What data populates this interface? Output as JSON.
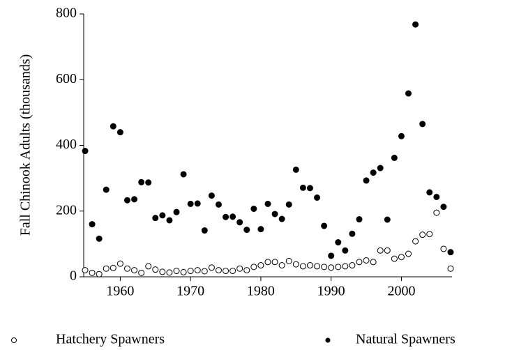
{
  "chart_data": {
    "type": "scatter",
    "y_label": "Fall Chinook Adults (thousands)",
    "x": [
      1955,
      1956,
      1957,
      1958,
      1959,
      1960,
      1961,
      1962,
      1963,
      1964,
      1965,
      1966,
      1967,
      1968,
      1969,
      1970,
      1971,
      1972,
      1973,
      1974,
      1975,
      1976,
      1977,
      1978,
      1979,
      1980,
      1981,
      1982,
      1983,
      1984,
      1985,
      1986,
      1987,
      1988,
      1989,
      1990,
      1991,
      1992,
      1993,
      1994,
      1995,
      1996,
      1997,
      1998,
      1999,
      2000,
      2001,
      2002,
      2003,
      2004,
      2005,
      2006,
      2007
    ],
    "series": [
      {
        "name": "Hatchery Spawners",
        "color": "#000000",
        "marker": "open",
        "values": [
          20,
          12,
          8,
          25,
          27,
          40,
          25,
          20,
          12,
          32,
          22,
          15,
          13,
          18,
          14,
          18,
          20,
          17,
          28,
          20,
          18,
          18,
          25,
          20,
          30,
          35,
          45,
          45,
          35,
          48,
          38,
          32,
          35,
          32,
          30,
          28,
          30,
          32,
          35,
          45,
          50,
          45,
          80,
          80,
          55,
          60,
          70,
          108,
          128,
          130,
          195,
          85,
          25
        ]
      },
      {
        "name": "Natural Spawners",
        "color": "#000000",
        "marker": "filled",
        "values": [
          383,
          160,
          116,
          265,
          458,
          440,
          233,
          236,
          288,
          287,
          179,
          187,
          172,
          197,
          312,
          222,
          223,
          141,
          247,
          220,
          182,
          183,
          166,
          143,
          207,
          145,
          222,
          191,
          176,
          220,
          326,
          271,
          270,
          241,
          155,
          64,
          105,
          80,
          131,
          175,
          293,
          317,
          331,
          174,
          362,
          428,
          558,
          768,
          465,
          257,
          243,
          213,
          75
        ]
      }
    ],
    "xlim": [
      1954.8,
      2007.2
    ],
    "xticks": [
      1960,
      1970,
      1980,
      1990,
      2000
    ],
    "ylim": [
      0,
      800
    ],
    "yticks": [
      0,
      200,
      400,
      600,
      800
    ],
    "grid": false,
    "legend": "bottom"
  }
}
